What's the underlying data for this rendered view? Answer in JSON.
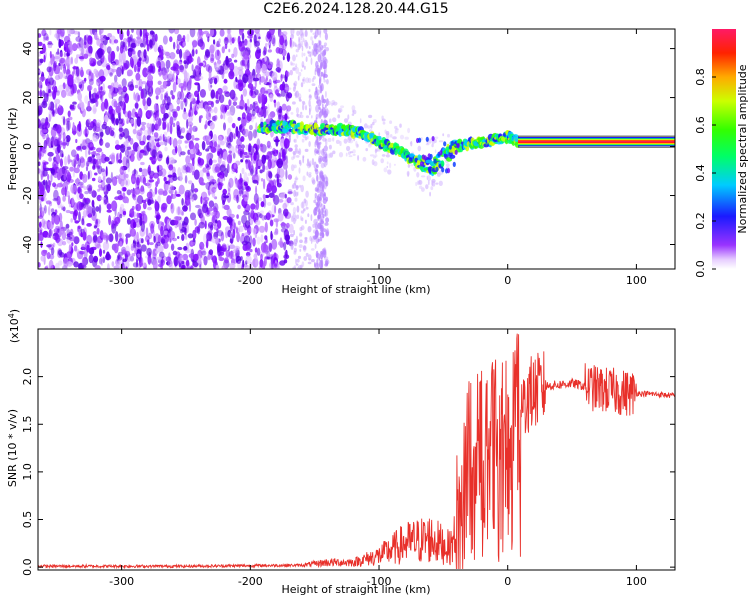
{
  "title": "C2E6.2024.128.20.44.G15",
  "chart_data": [
    {
      "type": "heatmap",
      "xlabel": "Height of straight line (km)",
      "ylabel": "Frequency (Hz)",
      "xlim": [
        -365,
        130
      ],
      "ylim": [
        -50,
        48
      ],
      "xticks": [
        -300,
        -200,
        -100,
        0,
        100
      ],
      "yticks": [
        -40,
        -20,
        0,
        20,
        40
      ],
      "xticklabels": [
        "-300",
        "-200",
        "-100",
        "0",
        "100"
      ],
      "yticklabels": [
        "-40",
        "-20",
        "0",
        "20",
        "40"
      ],
      "colorbar": {
        "label": "Normalized spectral amplitude",
        "range": [
          0,
          1
        ],
        "ticks": [
          0.0,
          0.2,
          0.4,
          0.6,
          0.8
        ],
        "ticklabels": [
          "0.0",
          "0.2",
          "0.4",
          "0.6",
          "0.8"
        ]
      },
      "signal_ridge": [
        {
          "x": -190,
          "y": 8
        },
        {
          "x": -170,
          "y": 8
        },
        {
          "x": -150,
          "y": 7
        },
        {
          "x": -130,
          "y": 7
        },
        {
          "x": -110,
          "y": 5
        },
        {
          "x": -100,
          "y": 2
        },
        {
          "x": -85,
          "y": -2
        },
        {
          "x": -70,
          "y": -6
        },
        {
          "x": -58,
          "y": -9
        },
        {
          "x": -50,
          "y": -4
        },
        {
          "x": -40,
          "y": 0
        },
        {
          "x": -30,
          "y": 1
        },
        {
          "x": -15,
          "y": 2
        },
        {
          "x": 0,
          "y": 4
        },
        {
          "x": 10,
          "y": 2
        },
        {
          "x": 130,
          "y": 2
        }
      ],
      "noise_region_x": [
        -365,
        -145
      ],
      "grid": false
    },
    {
      "type": "line",
      "xlabel": "Height of straight line (km)",
      "ylabel": "SNR (10 * v/v)",
      "y_multiplier": "(x10",
      "y_multiplier_exp": "4",
      "y_multiplier_close": ")",
      "xlim": [
        -365,
        130
      ],
      "ylim": [
        -0.03,
        2.5
      ],
      "xticks": [
        -300,
        -200,
        -100,
        0,
        100
      ],
      "yticks": [
        0.0,
        0.5,
        1.0,
        1.5,
        2.0
      ],
      "xticklabels": [
        "-300",
        "-200",
        "-100",
        "0",
        "100"
      ],
      "yticklabels": [
        "0.0",
        "0.5",
        "1.0",
        "1.5",
        "2.0"
      ],
      "color": "#e8302a",
      "envelope": [
        {
          "x": -365,
          "y": 0.01
        },
        {
          "x": -250,
          "y": 0.01
        },
        {
          "x": -160,
          "y": 0.02
        },
        {
          "x": -140,
          "y": 0.05
        },
        {
          "x": -120,
          "y": 0.05
        },
        {
          "x": -100,
          "y": 0.12
        },
        {
          "x": -80,
          "y": 0.25
        },
        {
          "x": -60,
          "y": 0.3
        },
        {
          "x": -45,
          "y": 0.2
        },
        {
          "x": -38,
          "y": 0.4
        },
        {
          "x": -32,
          "y": 1.1
        },
        {
          "x": -25,
          "y": 1.3
        },
        {
          "x": -15,
          "y": 1.25
        },
        {
          "x": -5,
          "y": 1.35
        },
        {
          "x": 5,
          "y": 1.5
        },
        {
          "x": 15,
          "y": 1.8
        },
        {
          "x": 30,
          "y": 1.9
        },
        {
          "x": 50,
          "y": 1.93
        },
        {
          "x": 70,
          "y": 1.87
        },
        {
          "x": 90,
          "y": 1.83
        },
        {
          "x": 110,
          "y": 1.82
        },
        {
          "x": 130,
          "y": 1.8
        }
      ],
      "grid": false
    }
  ]
}
